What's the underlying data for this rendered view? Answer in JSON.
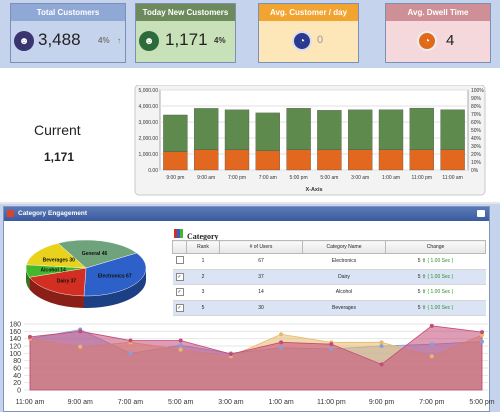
{
  "kpis": [
    {
      "title": "Total Customers",
      "value": "3,488",
      "pct": "4%",
      "trend": "↑",
      "head_color": "#8fa8d6",
      "body_color": "#c6d3ec",
      "icon_color": "#3a3570",
      "icon": "customers-icon"
    },
    {
      "title": "Today New Customers",
      "value": "1,171",
      "pct": "4%",
      "head_color": "#6d8a5c",
      "body_color": "#c8e1b8",
      "icon_color": "#2e6b3a",
      "icon": "new-customer-icon"
    },
    {
      "title": "Avg. Customer / day",
      "value": "0",
      "head_color": "#f2a430",
      "body_color": "#fde7b8",
      "icon_color": "#2a3a8f",
      "icon": "clock-icon"
    },
    {
      "title": "Avg. Dwell Time",
      "value": "4",
      "head_color": "#cf8f96",
      "body_color": "#f4d8dc",
      "icon_color": "#e06a1a",
      "icon": "timer-icon"
    }
  ],
  "current": {
    "label": "Current",
    "value": "1,171"
  },
  "bar_chart": {
    "type": "bar",
    "categories": [
      "9:00 pm",
      "9:00 am",
      "7:00 pm",
      "7:00 am",
      "5:00 pm",
      "5:00 am",
      "3:00 am",
      "1:00 am",
      "11:00 pm",
      "11:00 am"
    ],
    "series": [
      {
        "values": [
          1150,
          1270,
          1260,
          1200,
          1270,
          1260,
          1270,
          1270,
          1270,
          1270
        ],
        "color": "#e2681f"
      },
      {
        "values": [
          2290,
          2580,
          2500,
          2370,
          2590,
          2470,
          2490,
          2500,
          2600,
          2500
        ],
        "color": "#5f8a4e"
      }
    ],
    "y_ticks": [
      "0.00",
      "1,000.00",
      "2,000.00",
      "3,000.00",
      "4,000.00",
      "5,000.00"
    ],
    "y2_ticks": [
      "0%",
      "10%",
      "20%",
      "30%",
      "40%",
      "50%",
      "60%",
      "70%",
      "80%",
      "90%",
      "100%"
    ],
    "xlabel": "X-Axis",
    "ylim": [
      0,
      5000
    ]
  },
  "category": {
    "panel_title": "Category Engagement",
    "title": "Category",
    "columns": [
      "Rank",
      "# of Users",
      "Category Name",
      "Change"
    ],
    "rows": [
      {
        "checked": false,
        "rank": "1",
        "users": "67",
        "name": "Electronics",
        "change_prefix": "5",
        "change": "( 1.00 Sec )",
        "selected": false
      },
      {
        "checked": true,
        "rank": "2",
        "users": "37",
        "name": "Dairy",
        "change_prefix": "5",
        "change": "( 1.00 Sec )",
        "selected": true
      },
      {
        "checked": true,
        "rank": "3",
        "users": "14",
        "name": "Alcohol",
        "change_prefix": "5",
        "change": "( 1.00 Sec )",
        "selected": false
      },
      {
        "checked": true,
        "rank": "5",
        "users": "30",
        "name": "Beverages",
        "change_prefix": "5",
        "change": "( 1.00 Sec )",
        "selected": true
      }
    ]
  },
  "pie": {
    "labels": [
      "Electronics",
      "Dairy",
      "Alcohol",
      "Beverages",
      "General"
    ],
    "values": [
      67,
      37,
      14,
      30,
      46
    ],
    "texts": [
      "Electronics 67",
      "Dairy 37",
      "Alcohol 14",
      "Beverages 30",
      "General 46"
    ],
    "colors": [
      "#2d61c9",
      "#d22f22",
      "#43b82c",
      "#e8d21b",
      "#6ea37b"
    ]
  },
  "area_chart": {
    "type": "area",
    "x": [
      "11:00 am",
      "9:00 am",
      "7:00 am",
      "5:00 am",
      "3:00 am",
      "1:00 am",
      "11:00 pm",
      "9:00 pm",
      "7:00 pm",
      "5:00 pm"
    ],
    "y_ticks": [
      "0",
      "20",
      "40",
      "60",
      "80",
      "100",
      "120",
      "140",
      "160",
      "180"
    ],
    "ylim": [
      0,
      180
    ],
    "series": [
      {
        "values": [
          140,
          165,
          100,
          122,
          100,
          115,
          112,
          120,
          125,
          132
        ],
        "color": "#8a9dd8"
      },
      {
        "values": [
          140,
          118,
          130,
          110,
          92,
          152,
          130,
          130,
          92,
          150
        ],
        "color": "#e8b86a"
      },
      {
        "values": [
          145,
          160,
          135,
          135,
          98,
          130,
          125,
          70,
          175,
          158
        ],
        "color": "#c44a78"
      }
    ]
  }
}
